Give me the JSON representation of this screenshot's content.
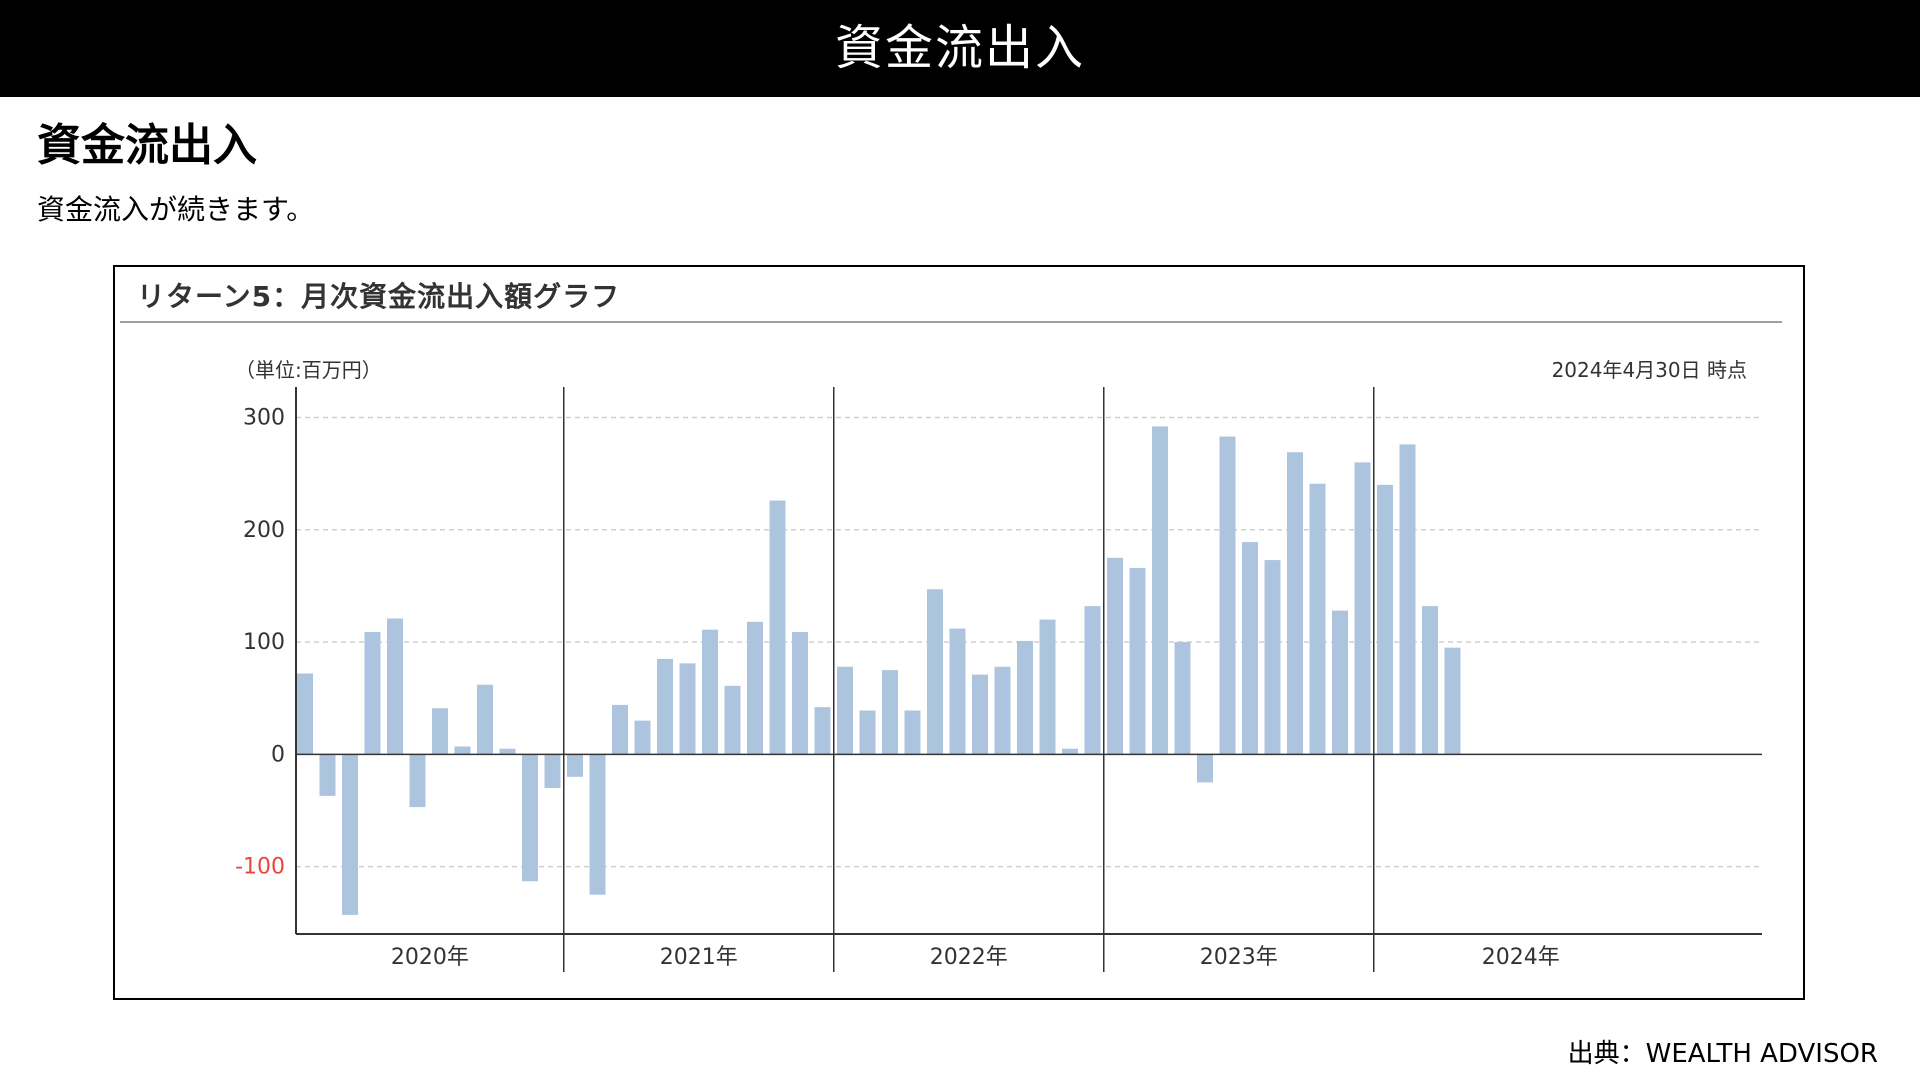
{
  "header": {
    "title": "資金流出入"
  },
  "section": {
    "title": "資金流出入",
    "description": "資金流入が続きます。"
  },
  "chart_panel": {
    "title": "リターン5：月次資金流出入額グラフ"
  },
  "chart_data": {
    "type": "bar",
    "unit_label": "（単位:百万円）",
    "as_of": "2024年4月30日 時点",
    "ylim": [
      -160,
      320
    ],
    "yticks": [
      300,
      200,
      100,
      0,
      -100
    ],
    "negative_tick_color": "#e8463c",
    "bar_color": "#adc4df",
    "grid": true,
    "years": [
      "2020年",
      "2021年",
      "2022年",
      "2023年",
      "2024年"
    ],
    "year_month_counts": [
      12,
      12,
      12,
      12,
      4
    ],
    "series": [
      {
        "values": [
          72,
          -37,
          -143,
          109,
          121,
          -47,
          41,
          7,
          62,
          5,
          -113,
          -30,
          -20,
          -125,
          44,
          30,
          85,
          81,
          111,
          61,
          118,
          226,
          109,
          42,
          78,
          39,
          75,
          39,
          147,
          112,
          71,
          78,
          101,
          120,
          5,
          132,
          175,
          166,
          292,
          100,
          -25,
          283,
          189,
          173,
          269,
          241,
          128,
          260,
          240,
          276,
          132,
          95
        ]
      }
    ]
  },
  "footer": {
    "source": "出典：WEALTH ADVISOR"
  }
}
